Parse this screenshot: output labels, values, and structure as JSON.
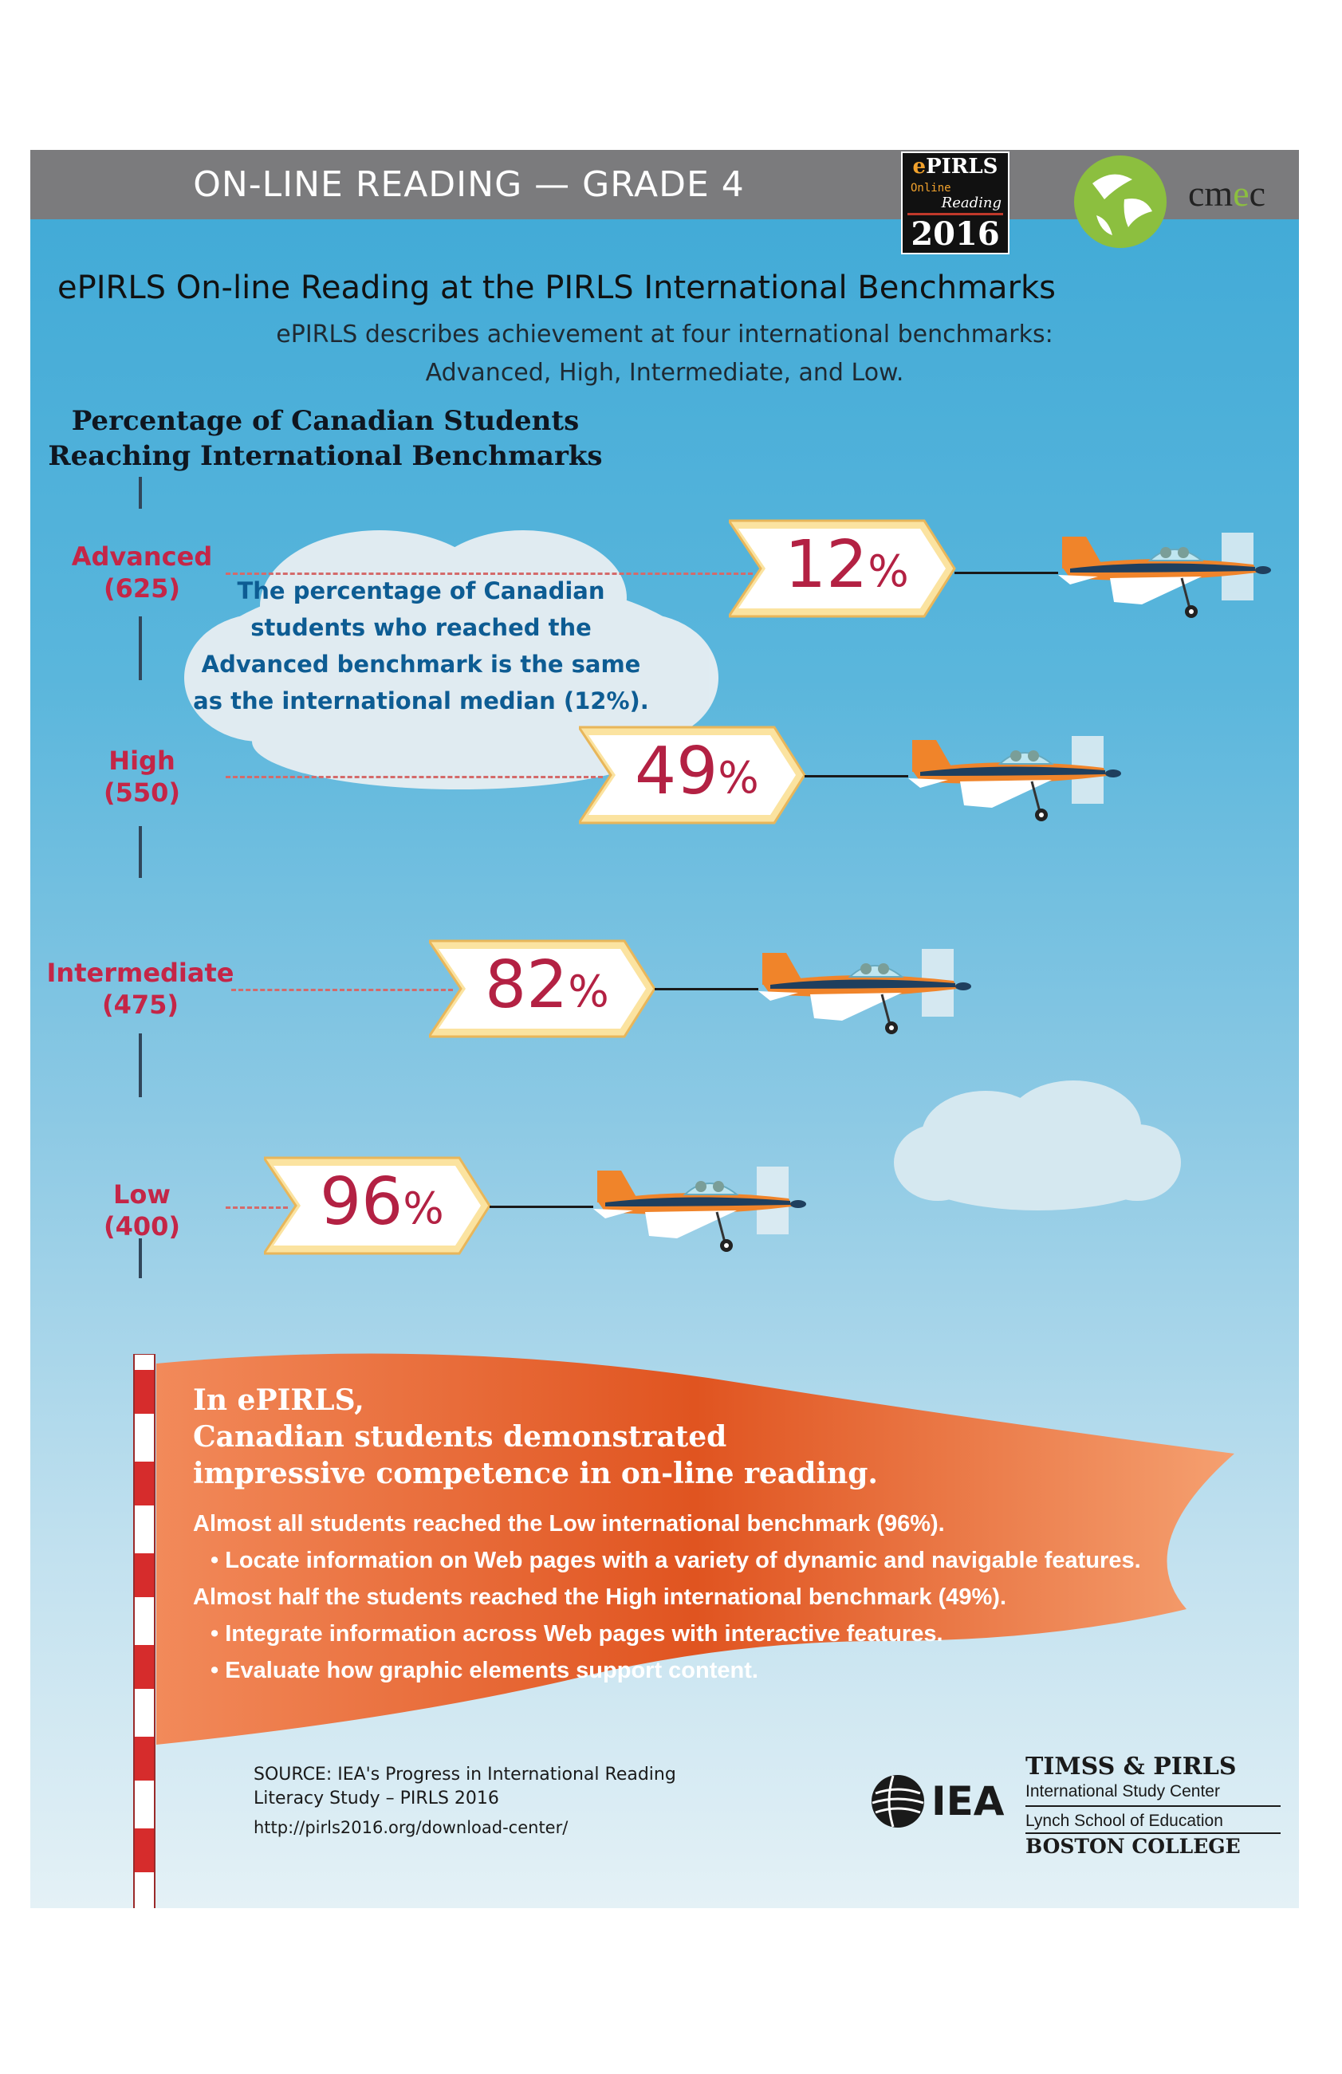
{
  "header": {
    "title": "ON-LINE READING — GRADE 4",
    "epirls_logo": {
      "brand_e": "e",
      "brand_rest": "PIRLS",
      "line2": "Online",
      "line3": "Reading",
      "year": "2016"
    },
    "cmec_logo": {
      "text_a": "cm",
      "text_b": "e",
      "text_c": "c"
    }
  },
  "intro": {
    "heading": "ePIRLS On-line Reading at the PIRLS International Benchmarks",
    "sub_line1": "ePIRLS describes achievement at four international benchmarks:",
    "sub_line2": "Advanced, High, Intermediate, and Low."
  },
  "chart_data": {
    "type": "bar",
    "title": "Percentage of Canadian Students Reaching International Benchmarks",
    "title_line1": "Percentage of Canadian Students",
    "title_line2": "Reaching International Benchmarks",
    "categories": [
      "Advanced (625)",
      "High (550)",
      "Intermediate (475)",
      "Low (400)"
    ],
    "benchmarks": [
      {
        "name": "Advanced",
        "score": "(625)",
        "value": 12,
        "label": "12"
      },
      {
        "name": "High",
        "score": "(550)",
        "value": 49,
        "label": "49"
      },
      {
        "name": "Intermediate",
        "score": "(475)",
        "value": 82,
        "label": "82"
      },
      {
        "name": "Low",
        "score": "(400)",
        "value": 96,
        "label": "96"
      }
    ],
    "unit": "%"
  },
  "cloud_note": "The percentage of Canadian students who reached the Advanced benchmark is the same as the international median  (12%).",
  "flag": {
    "headline1": "In ePIRLS,",
    "headline2": "Canadian students demonstrated",
    "headline3": "impressive competence in on-line reading.",
    "p1": "Almost all students reached the Low international benchmark (96%).",
    "b1": "•  Locate information on Web pages with a variety of dynamic and navigable features.",
    "p2": "Almost half the students reached the High international benchmark (49%).",
    "b2": "•  Integrate information across Web pages with interactive features.",
    "b3": "•  Evaluate how graphic elements support content."
  },
  "footer": {
    "source1": "SOURCE: IEA's Progress in International Reading",
    "source2": "Literacy Study – PIRLS 2016",
    "url": "http://pirls2016.org/download-center/",
    "iea": "IEA",
    "timss1": "TIMSS & PIRLS",
    "timss2": "International Study Center",
    "timss3": "Lynch School of Education",
    "timss4": "BOSTON COLLEGE"
  },
  "colors": {
    "accent": "#c42647",
    "flag": "#e8632a",
    "sky": "#3fa9d6"
  }
}
